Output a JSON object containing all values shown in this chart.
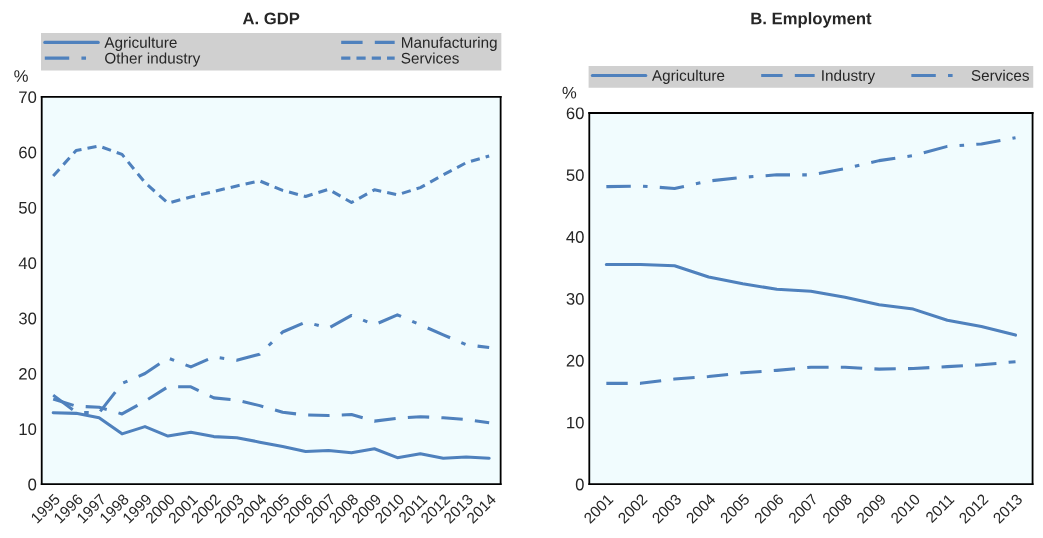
{
  "chart_data": [
    {
      "type": "line",
      "title": "A. GDP",
      "ylabel": "%",
      "categories": [
        "1995",
        "1996",
        "1997",
        "1998",
        "1999",
        "2000",
        "2001",
        "2002",
        "2003",
        "2004",
        "2005",
        "2006",
        "2007",
        "2008",
        "2009",
        "2010",
        "2011",
        "2012",
        "2013",
        "2014"
      ],
      "ylim": [
        0,
        70
      ],
      "yticks": [
        0,
        10,
        20,
        30,
        40,
        50,
        60,
        70
      ],
      "legend": "top",
      "series": [
        {
          "name": "Agriculture",
          "color": "#4f81bd",
          "line_style": "solid",
          "values": [
            12.9,
            12.8,
            12.0,
            9.1,
            10.4,
            8.7,
            9.4,
            8.6,
            8.4,
            7.6,
            6.8,
            5.9,
            6.1,
            5.7,
            6.4,
            4.8,
            5.5,
            4.7,
            4.9,
            4.7
          ]
        },
        {
          "name": "Manufacturing",
          "color": "#4f81bd",
          "line_style": "dashed",
          "values": [
            15.4,
            14.1,
            13.9,
            12.7,
            15.0,
            17.6,
            17.6,
            15.6,
            15.2,
            14.2,
            13.0,
            12.5,
            12.4,
            12.6,
            11.4,
            11.9,
            12.2,
            12.0,
            11.7,
            11.1
          ]
        },
        {
          "name": "Other industry",
          "color": "#4f81bd",
          "line_style": "dashdot",
          "values": [
            16.1,
            13.0,
            12.9,
            18.2,
            20.0,
            22.8,
            21.2,
            23.0,
            22.4,
            23.5,
            27.5,
            29.3,
            28.2,
            30.5,
            28.8,
            30.6,
            28.8,
            27.0,
            25.2,
            24.7
          ]
        },
        {
          "name": "Services",
          "color": "#4f81bd",
          "line_style": "dotted",
          "values": [
            55.7,
            60.3,
            61.1,
            59.6,
            54.5,
            50.8,
            51.9,
            52.9,
            53.9,
            54.8,
            53.1,
            52.0,
            53.3,
            50.9,
            53.2,
            52.3,
            53.6,
            55.9,
            58.1,
            59.3
          ]
        }
      ]
    },
    {
      "type": "line",
      "title": "B. Employment",
      "ylabel": "%",
      "categories": [
        "2001",
        "2002",
        "2003",
        "2004",
        "2005",
        "2006",
        "2007",
        "2008",
        "2009",
        "2010",
        "2011",
        "2012",
        "2013"
      ],
      "ylim": [
        0,
        60
      ],
      "yticks": [
        0,
        10,
        20,
        30,
        40,
        50,
        60
      ],
      "legend": "top",
      "series": [
        {
          "name": "Agriculture",
          "color": "#4f81bd",
          "line_style": "solid",
          "values": [
            35.5,
            35.5,
            35.3,
            33.5,
            32.4,
            31.5,
            31.2,
            30.2,
            29.0,
            28.3,
            26.5,
            25.5,
            24.1
          ]
        },
        {
          "name": "Industry",
          "color": "#4f81bd",
          "line_style": "dashed",
          "values": [
            16.3,
            16.3,
            17.0,
            17.4,
            18.0,
            18.4,
            18.9,
            18.9,
            18.6,
            18.7,
            19.0,
            19.3,
            19.8
          ]
        },
        {
          "name": "Services",
          "color": "#4f81bd",
          "line_style": "dashdot",
          "values": [
            48.1,
            48.2,
            47.8,
            49.0,
            49.6,
            50.0,
            50.0,
            51.0,
            52.3,
            53.1,
            54.6,
            55.0,
            56.0
          ]
        }
      ]
    }
  ]
}
